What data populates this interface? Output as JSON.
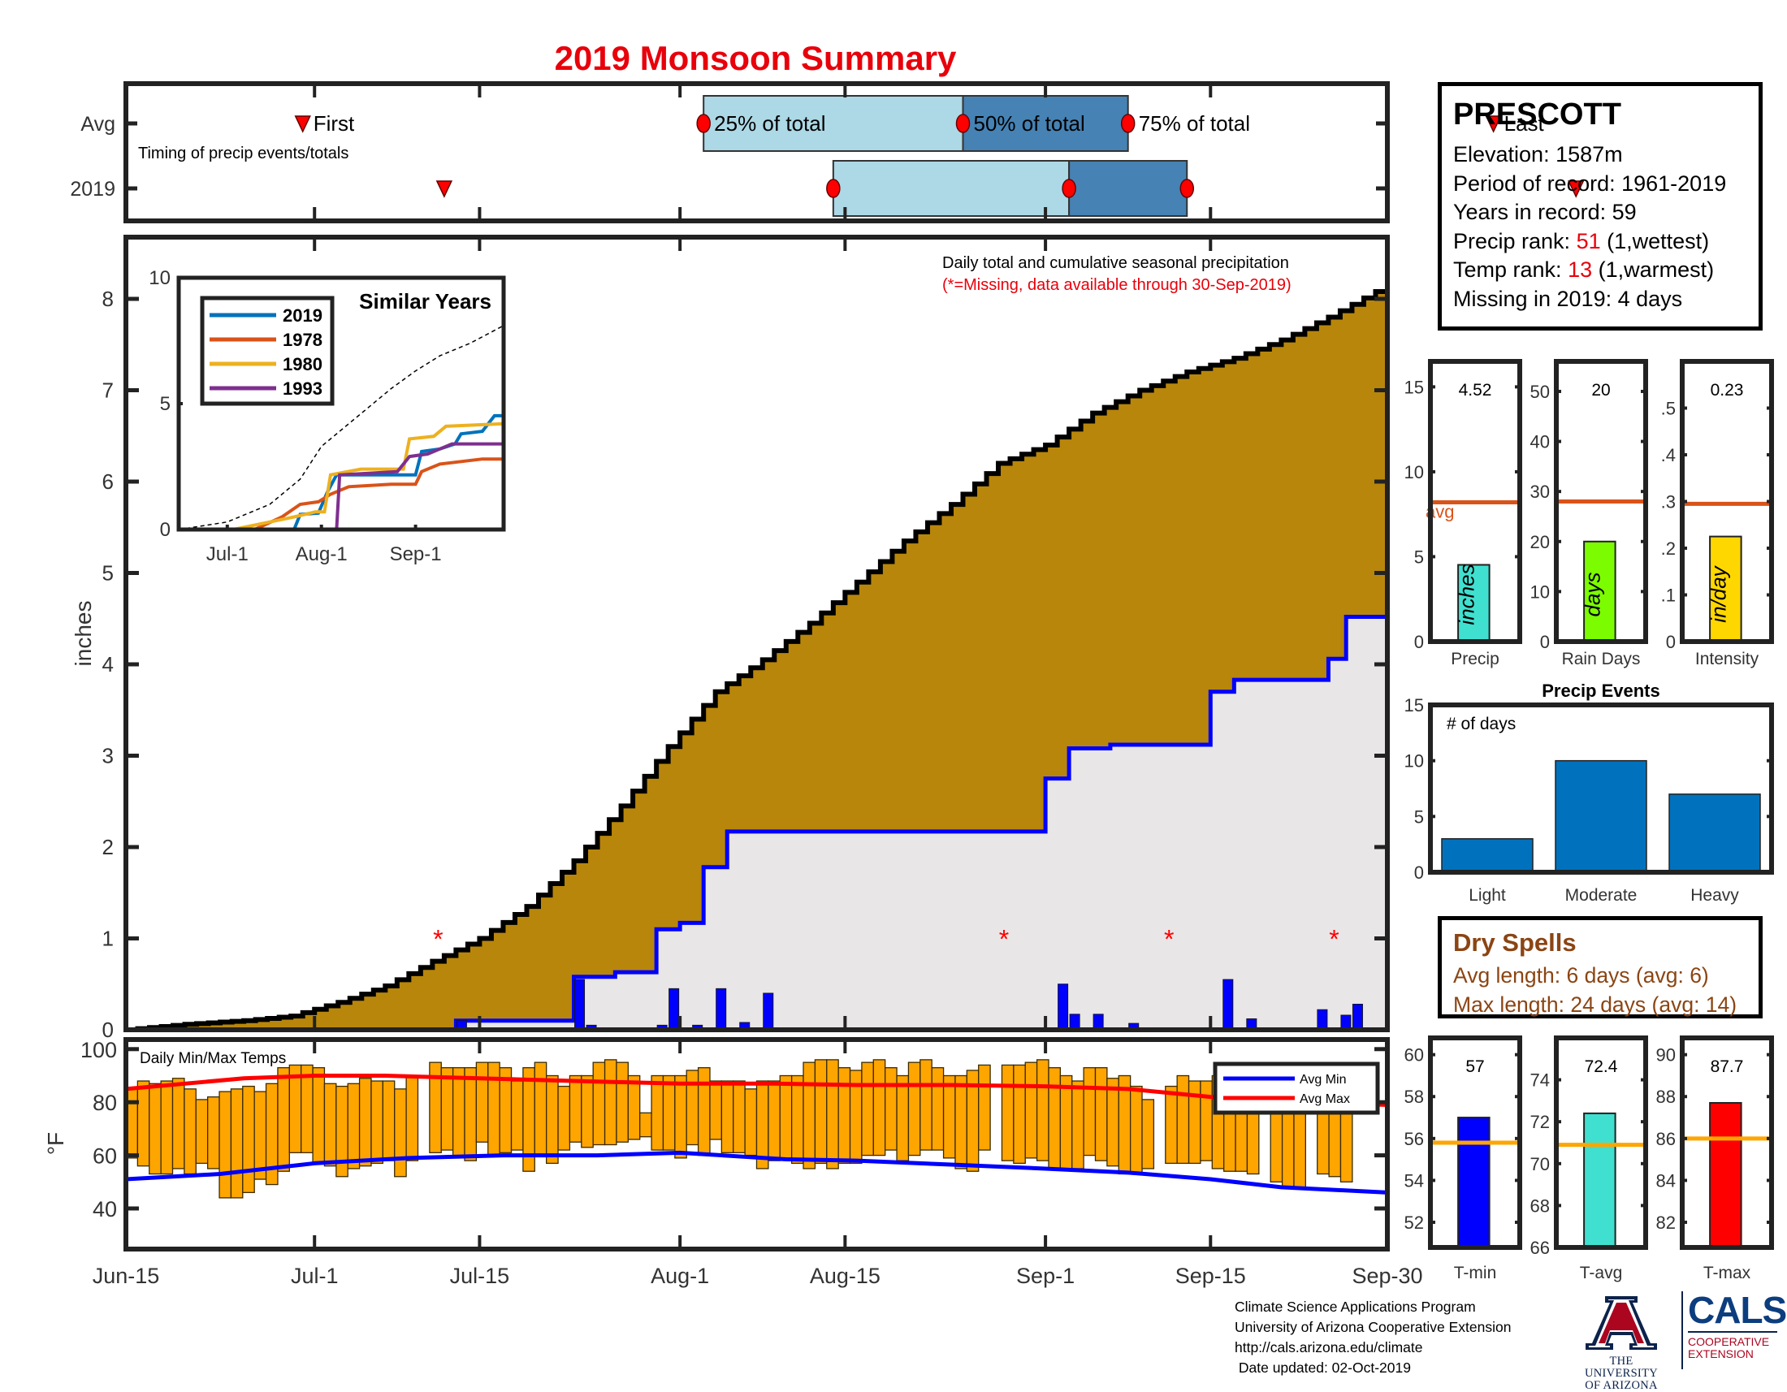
{
  "title": "2019 Monsoon Summary",
  "station": {
    "name": "PRESCOTT",
    "elevation_label": "Elevation: 1587m",
    "period_label": "Period of record: 1961-2019",
    "years_label": "Years in record: 59",
    "precip_rank_prefix": "Precip rank: ",
    "precip_rank_value": "51",
    "precip_rank_suffix": " (1,wettest)",
    "temp_rank_prefix": "Temp rank: ",
    "temp_rank_value": "13",
    "temp_rank_suffix": " (1,warmest)",
    "missing_label": "Missing in 2019: 4 days"
  },
  "dry_spells": {
    "title": "Dry Spells",
    "avg_length": "Avg length: 6 days (avg: 6)",
    "max_length": "Max length: 24 days (avg: 14)"
  },
  "footer": {
    "line1": "Climate Science Applications Program",
    "line2": "University of Arizona Cooperative Extension",
    "line3": "http://cals.arizona.edu/climate",
    "line4": " Date updated: 02-Oct-2019"
  },
  "logos": {
    "ua_line1": "THE UNIVERSITY",
    "ua_line2": "OF ARIZONA",
    "cals": "CALS",
    "coop_line1": "COOPERATIVE",
    "coop_line2": "EXTENSION"
  },
  "colors": {
    "title": "#e8000b",
    "avg_cum_fill": "#b8860b",
    "obs_cum_fill": "#e8e6e6",
    "obs_line": "#0000ff",
    "daily_bar": "#0000ff",
    "temp_bar": "#ffa500",
    "avg_min": "#0000ff",
    "avg_max": "#ff0000",
    "light_q": "#add8e6",
    "dark_q": "#4682b4",
    "avg_ref": "#d95319",
    "temp_ref": "#ffa500",
    "precip_bar": "#40e0d0",
    "raindays_bar": "#7cfc00",
    "intensity_bar": "#ffd700",
    "tmin_bar": "#0000ff",
    "tavg_bar": "#40e0d0",
    "tmax_bar": "#ff0000",
    "events_bar": "#0072bd",
    "dry": "#8b4513"
  },
  "chart_data": [
    {
      "id": "timing",
      "type": "timeline",
      "title": "Timing of precip events/totals",
      "x_range": [
        "Jun-15",
        "Sep-30"
      ],
      "rows": [
        "Avg",
        "2019"
      ],
      "avg": {
        "first_day": 15,
        "p25_day": 49,
        "p50_day": 71,
        "p75_day": 85,
        "last_day": 116
      },
      "y2019": {
        "first_day": 27,
        "p25_day": 60,
        "p50_day": 80,
        "p75_day": 90,
        "last_day": 123
      },
      "labels": {
        "first": "First",
        "p25": "25% of total",
        "p50": "50% of total",
        "p75": "75% of total",
        "last": "Last"
      }
    },
    {
      "id": "precip",
      "type": "area",
      "title": "Daily total and cumulative seasonal precipitation",
      "subtitle": "(*=Missing, data available through 30-Sep-2019)",
      "ylabel": "inches",
      "ylim": [
        0,
        8.5
      ],
      "yticks": [
        0,
        1,
        2,
        3,
        4,
        5,
        6,
        7,
        8
      ],
      "xticks": [
        {
          "day": 0,
          "label": "Jun-15"
        },
        {
          "day": 16,
          "label": "Jul-1"
        },
        {
          "day": 30,
          "label": "Jul-15"
        },
        {
          "day": 47,
          "label": "Aug-1"
        },
        {
          "day": 61,
          "label": "Aug-15"
        },
        {
          "day": 78,
          "label": "Sep-1"
        },
        {
          "day": 92,
          "label": "Sep-15"
        },
        {
          "day": 107,
          "label": "Sep-30"
        }
      ],
      "avg_cumulative": [
        [
          0,
          0
        ],
        [
          5,
          0.06
        ],
        [
          10,
          0.1
        ],
        [
          14,
          0.15
        ],
        [
          18,
          0.3
        ],
        [
          22,
          0.48
        ],
        [
          26,
          0.75
        ],
        [
          30,
          1.0
        ],
        [
          34,
          1.35
        ],
        [
          38,
          1.85
        ],
        [
          42,
          2.45
        ],
        [
          46,
          3.1
        ],
        [
          50,
          3.7
        ],
        [
          54,
          4.05
        ],
        [
          58,
          4.45
        ],
        [
          62,
          4.9
        ],
        [
          66,
          5.35
        ],
        [
          70,
          5.75
        ],
        [
          74,
          6.2
        ],
        [
          78,
          6.4
        ],
        [
          82,
          6.75
        ],
        [
          86,
          7.0
        ],
        [
          90,
          7.2
        ],
        [
          94,
          7.35
        ],
        [
          98,
          7.55
        ],
        [
          102,
          7.8
        ],
        [
          107,
          8.15
        ]
      ],
      "obs_cumulative": [
        [
          0,
          0
        ],
        [
          28,
          0
        ],
        [
          28,
          0.1
        ],
        [
          38,
          0.1
        ],
        [
          38,
          0.58
        ],
        [
          45,
          0.63
        ],
        [
          45,
          1.1
        ],
        [
          49,
          1.17
        ],
        [
          49,
          1.78
        ],
        [
          53,
          2.17
        ],
        [
          78,
          2.17
        ],
        [
          78,
          2.75
        ],
        [
          82,
          3.08
        ],
        [
          85,
          3.12
        ],
        [
          92,
          3.12
        ],
        [
          92,
          3.7
        ],
        [
          96,
          3.83
        ],
        [
          102,
          3.83
        ],
        [
          102,
          4.06
        ],
        [
          105,
          4.52
        ],
        [
          107,
          4.52
        ]
      ],
      "daily_precip": [
        [
          28,
          0.1
        ],
        [
          38,
          0.55
        ],
        [
          39,
          0.05
        ],
        [
          45,
          0.05
        ],
        [
          46,
          0.45
        ],
        [
          48,
          0.05
        ],
        [
          50,
          0.45
        ],
        [
          52,
          0.08
        ],
        [
          54,
          0.4
        ],
        [
          79,
          0.5
        ],
        [
          80,
          0.17
        ],
        [
          82,
          0.17
        ],
        [
          85,
          0.07
        ],
        [
          93,
          0.55
        ],
        [
          95,
          0.12
        ],
        [
          101,
          0.22
        ],
        [
          103,
          0.16
        ],
        [
          104,
          0.28
        ]
      ],
      "missing_days": [
        26,
        74,
        88,
        102
      ],
      "missing_y": 1.0,
      "inset": {
        "title": "Similar Years",
        "ylim": [
          0,
          10
        ],
        "yticks": [
          0,
          5,
          10
        ],
        "xticks": [
          {
            "day": 16,
            "label": "Jul-1"
          },
          {
            "day": 47,
            "label": "Aug-1"
          },
          {
            "day": 78,
            "label": "Sep-1"
          }
        ],
        "series": [
          {
            "name": "2019",
            "color": "#0072bd",
            "points": [
              [
                0,
                0
              ],
              [
                38,
                0
              ],
              [
                40,
                0.6
              ],
              [
                46,
                0.65
              ],
              [
                49,
                1.5
              ],
              [
                52,
                2.17
              ],
              [
                78,
                2.17
              ],
              [
                80,
                3.1
              ],
              [
                86,
                3.2
              ],
              [
                91,
                3.4
              ],
              [
                93,
                3.8
              ],
              [
                100,
                3.9
              ],
              [
                104,
                4.52
              ],
              [
                107,
                4.52
              ]
            ]
          },
          {
            "name": "1978",
            "color": "#d95319",
            "points": [
              [
                0,
                0
              ],
              [
                25,
                0
              ],
              [
                34,
                0.5
              ],
              [
                40,
                1.0
              ],
              [
                46,
                1.1
              ],
              [
                50,
                1.4
              ],
              [
                56,
                1.7
              ],
              [
                70,
                1.8
              ],
              [
                78,
                1.8
              ],
              [
                80,
                2.3
              ],
              [
                86,
                2.6
              ],
              [
                100,
                2.8
              ],
              [
                107,
                2.8
              ]
            ]
          },
          {
            "name": "1980",
            "color": "#edb120",
            "points": [
              [
                0,
                0
              ],
              [
                18,
                0
              ],
              [
                30,
                0.3
              ],
              [
                38,
                0.5
              ],
              [
                45,
                0.7
              ],
              [
                48,
                0.7
              ],
              [
                50,
                2.17
              ],
              [
                60,
                2.4
              ],
              [
                74,
                2.4
              ],
              [
                76,
                3.6
              ],
              [
                84,
                3.7
              ],
              [
                88,
                4.1
              ],
              [
                107,
                4.2
              ]
            ]
          },
          {
            "name": "1993",
            "color": "#7e2f8e",
            "points": [
              [
                0,
                0
              ],
              [
                52,
                0
              ],
              [
                53,
                2.17
              ],
              [
                72,
                2.3
              ],
              [
                76,
                2.9
              ],
              [
                82,
                3.0
              ],
              [
                86,
                3.2
              ],
              [
                90,
                3.4
              ],
              [
                107,
                3.4
              ]
            ]
          }
        ],
        "average": [
          [
            0,
            0
          ],
          [
            16,
            0.3
          ],
          [
            30,
            1.0
          ],
          [
            40,
            2.0
          ],
          [
            47,
            3.3
          ],
          [
            60,
            4.6
          ],
          [
            70,
            5.6
          ],
          [
            78,
            6.3
          ],
          [
            86,
            6.9
          ],
          [
            96,
            7.4
          ],
          [
            107,
            8.1
          ]
        ]
      }
    },
    {
      "id": "temps",
      "type": "bar",
      "title": "Daily Min/Max Temps",
      "ylabel": "°F",
      "ylim": [
        27,
        104
      ],
      "yticks": [
        40,
        60,
        80,
        100
      ],
      "legend": [
        {
          "name": "Avg Min",
          "color": "#0000ff"
        },
        {
          "name": "Avg Max",
          "color": "#ff0000"
        }
      ],
      "legend_placement": "top-right",
      "daily_max": [
        85,
        88,
        87,
        88,
        89,
        85,
        81,
        82,
        84,
        85,
        86,
        84,
        87,
        93,
        94,
        94,
        93,
        87,
        86,
        87,
        89,
        88,
        88,
        85,
        90,
        null,
        95,
        93,
        93,
        93,
        95,
        95,
        93,
        88,
        93,
        95,
        90,
        86,
        90,
        90,
        95,
        96,
        95,
        90,
        76,
        90,
        90,
        90,
        92,
        93,
        88,
        88,
        88,
        85,
        88,
        88,
        90,
        90,
        95,
        96,
        96,
        93,
        92,
        95,
        96,
        93,
        90,
        95,
        96,
        93,
        90,
        90,
        92,
        94,
        null,
        94,
        94,
        95,
        96,
        93,
        90,
        88,
        93,
        93,
        89,
        90,
        86,
        81,
        null,
        86,
        90,
        88,
        88,
        90,
        84,
        84,
        84,
        null,
        82,
        82,
        82,
        null,
        78,
        80,
        79,
        null,
        null
      ],
      "daily_min": [
        59,
        56,
        53,
        53,
        55,
        53,
        57,
        55,
        44,
        44,
        46,
        51,
        49,
        54,
        61,
        61,
        57,
        56,
        52,
        55,
        56,
        57,
        58,
        52,
        58,
        null,
        61,
        62,
        59,
        58,
        65,
        60,
        61,
        62,
        54,
        60,
        57,
        62,
        65,
        63,
        64,
        64,
        65,
        66,
        67,
        62,
        62,
        59,
        64,
        60,
        66,
        61,
        61,
        60,
        55,
        58,
        59,
        57,
        55,
        57,
        55,
        57,
        57,
        60,
        60,
        62,
        58,
        60,
        62,
        62,
        59,
        55,
        54,
        62,
        null,
        58,
        57,
        59,
        58,
        55,
        55,
        55,
        60,
        58,
        56,
        53,
        53,
        55,
        null,
        57,
        57,
        57,
        58,
        55,
        54,
        54,
        53,
        null,
        50,
        48,
        48,
        null,
        53,
        52,
        50,
        null,
        null
      ],
      "avg_max": [
        [
          0,
          85
        ],
        [
          5,
          87
        ],
        [
          10,
          89
        ],
        [
          16,
          90
        ],
        [
          22,
          90
        ],
        [
          30,
          89
        ],
        [
          38,
          88
        ],
        [
          47,
          87
        ],
        [
          55,
          87
        ],
        [
          62,
          86.5
        ],
        [
          70,
          86.5
        ],
        [
          78,
          86
        ],
        [
          85,
          85
        ],
        [
          92,
          82
        ],
        [
          100,
          80
        ],
        [
          107,
          79
        ]
      ],
      "avg_min": [
        [
          0,
          51
        ],
        [
          8,
          53
        ],
        [
          16,
          57
        ],
        [
          24,
          59
        ],
        [
          32,
          60
        ],
        [
          40,
          60
        ],
        [
          47,
          61
        ],
        [
          56,
          58.5
        ],
        [
          62,
          58
        ],
        [
          70,
          56.5
        ],
        [
          78,
          55
        ],
        [
          85,
          53.5
        ],
        [
          92,
          51
        ],
        [
          98,
          48
        ],
        [
          107,
          46
        ]
      ]
    },
    {
      "id": "precip_stats",
      "type": "bar",
      "panels": [
        {
          "label": "Precip",
          "unit": "inches",
          "value": 4.52,
          "value_label": "4.52",
          "avg": 8.2,
          "avg_label": "avg",
          "ylim": [
            0,
            16.5
          ],
          "yticks": [
            0,
            5,
            10,
            15
          ]
        },
        {
          "label": "Rain Days",
          "unit": "days",
          "value": 20,
          "value_label": "20",
          "avg": 28,
          "ylim": [
            0,
            56
          ],
          "yticks": [
            0,
            10,
            20,
            30,
            40,
            50
          ]
        },
        {
          "label": "Intensity",
          "unit": "in/day",
          "value": 0.225,
          "value_label": "0.23",
          "avg": 0.295,
          "ylim": [
            0,
            0.6
          ],
          "yticks": [
            0,
            0.1,
            0.2,
            0.3,
            0.4,
            0.5
          ]
        }
      ]
    },
    {
      "id": "precip_events",
      "type": "bar",
      "title": "Precip Events",
      "ylabel_inside": "# of days",
      "categories": [
        "Light",
        "Moderate",
        "Heavy"
      ],
      "values": [
        3,
        10,
        7
      ],
      "ylim": [
        0,
        15
      ],
      "yticks": [
        0,
        5,
        10,
        15
      ]
    },
    {
      "id": "temp_stats",
      "type": "bar",
      "panels": [
        {
          "label": "T-min",
          "value": 57,
          "value_label": "57",
          "avg": 55.8,
          "ylim": [
            50.8,
            60.8
          ],
          "yticks": [
            52,
            54,
            56,
            58,
            60
          ]
        },
        {
          "label": "T-avg",
          "value": 72.4,
          "value_label": "72.4",
          "avg": 70.9,
          "ylim": [
            66,
            76
          ],
          "yticks": [
            66,
            68,
            70,
            72,
            74
          ]
        },
        {
          "label": "T-max",
          "value": 87.7,
          "value_label": "87.7",
          "avg": 86.0,
          "ylim": [
            80.8,
            90.8
          ],
          "yticks": [
            82,
            84,
            86,
            88,
            90
          ]
        }
      ]
    }
  ]
}
